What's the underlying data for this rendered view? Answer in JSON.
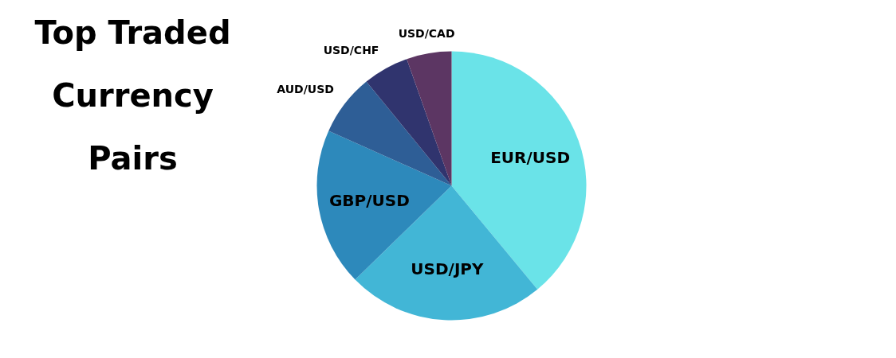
{
  "chart_data": {
    "type": "pie",
    "title": "Top Traded Currency Pairs",
    "categories": [
      "EUR/USD",
      "USD/JPY",
      "GBP/USD",
      "AUD/USD",
      "USD/CHF",
      "USD/CAD"
    ],
    "values": [
      39,
      23.7,
      19,
      7.4,
      5.5,
      5.4
    ],
    "colors": [
      "#6ae3e8",
      "#42b6d6",
      "#2d89bb",
      "#2e5e96",
      "#30346e",
      "#5c3663"
    ]
  }
}
